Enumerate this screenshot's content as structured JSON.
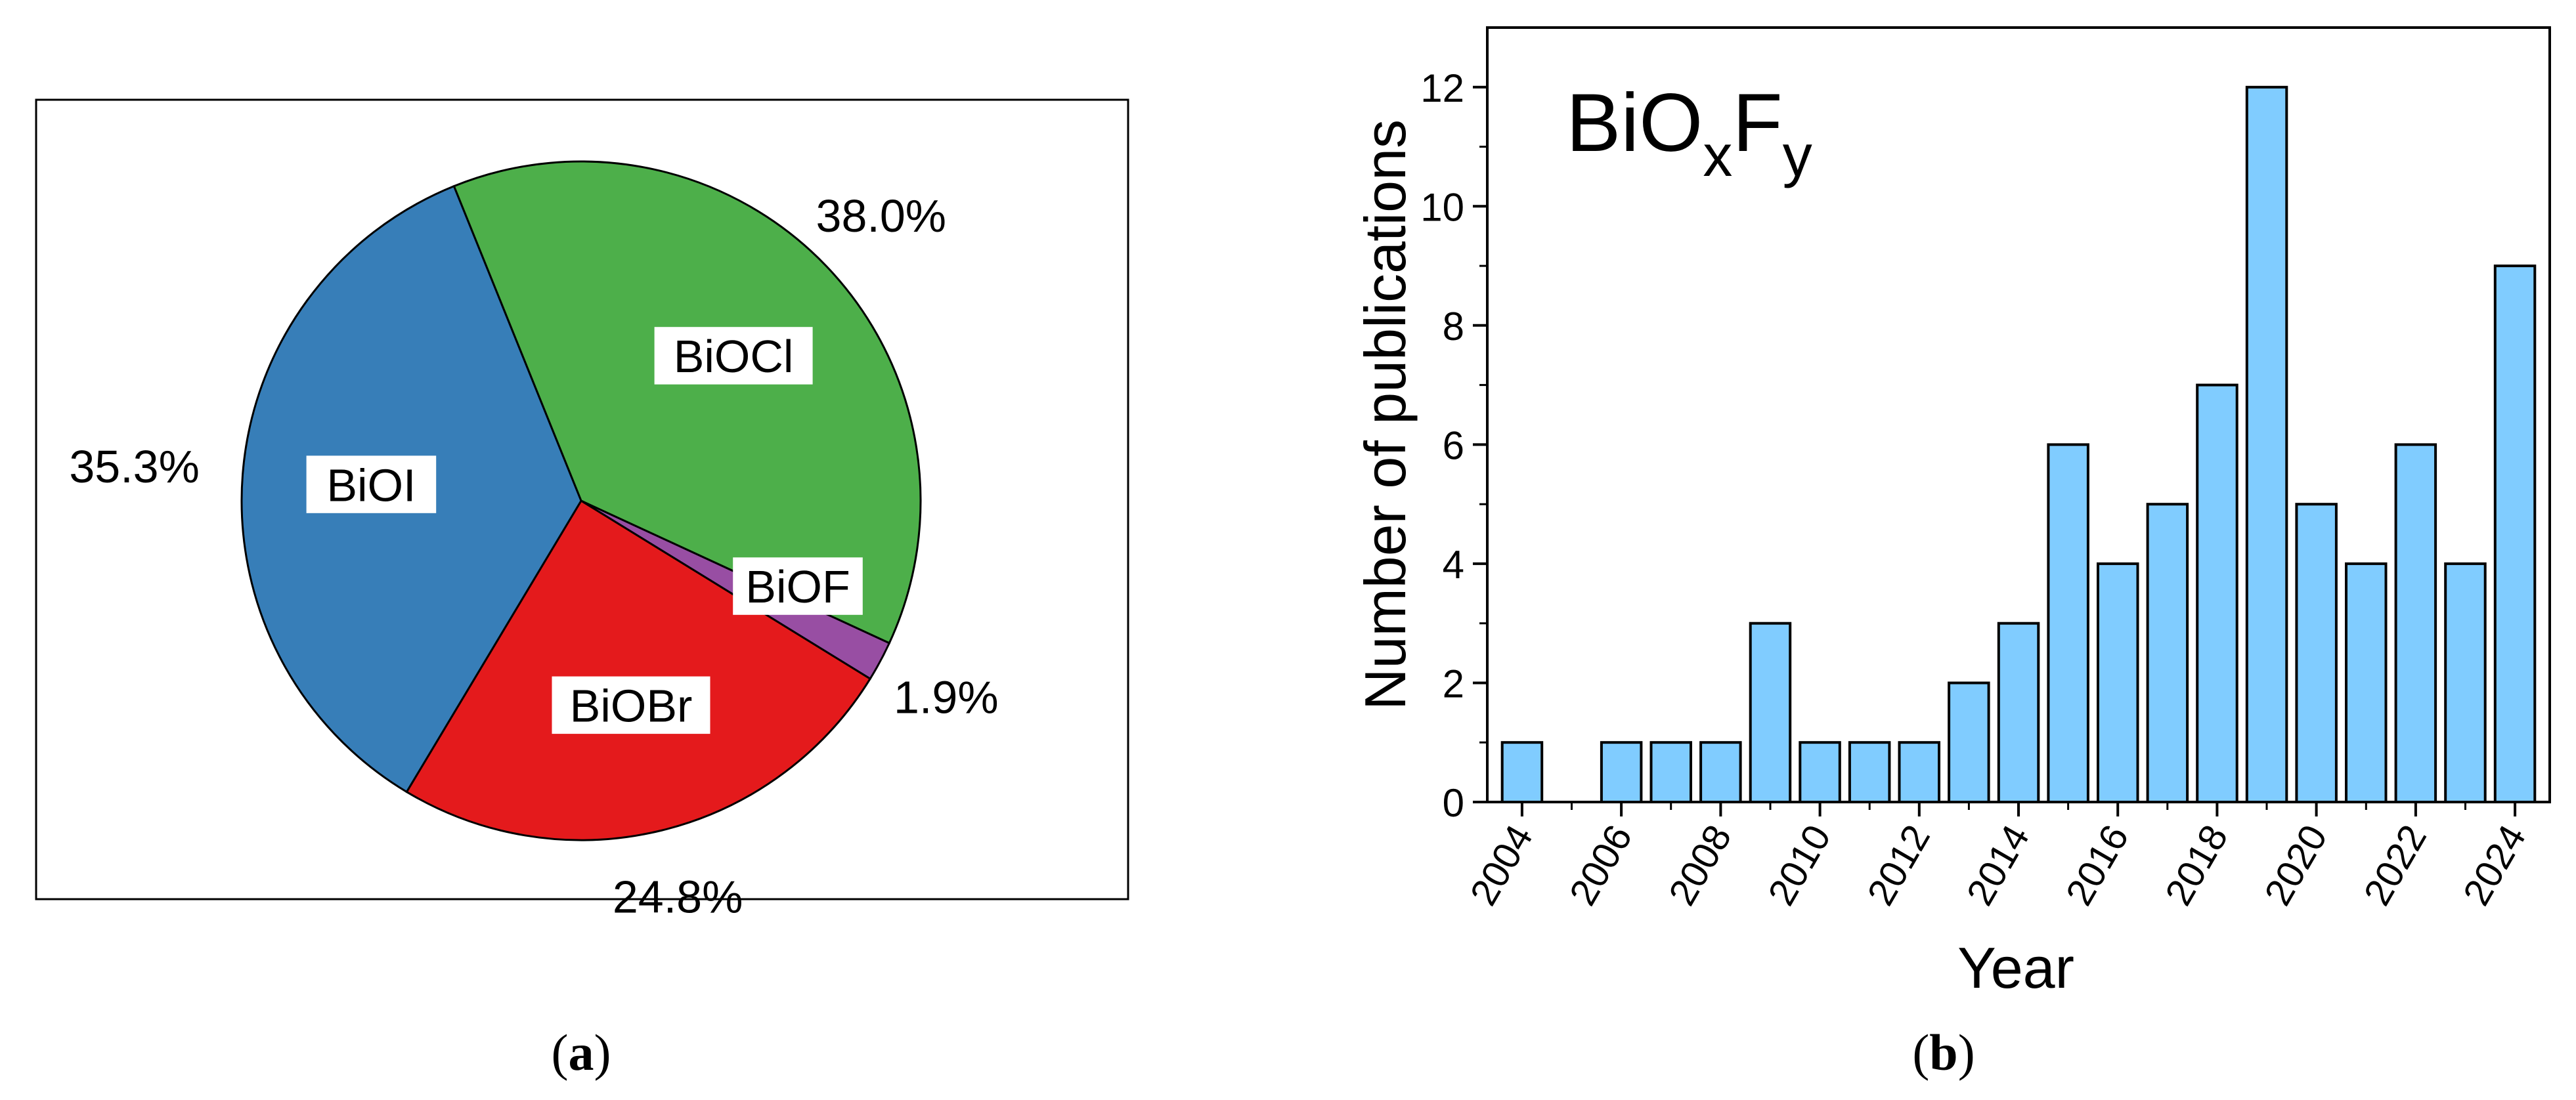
{
  "chart_data": [
    {
      "id": "a",
      "type": "pie",
      "caption": "a",
      "slices": [
        {
          "label": "BiOCl",
          "value": 38.0,
          "value_label": "38.0%",
          "color": "#4daf4a"
        },
        {
          "label": "BiOF",
          "value": 1.9,
          "value_label": "1.9%",
          "color": "#984ea3"
        },
        {
          "label": "BiOBr",
          "value": 24.8,
          "value_label": "24.8%",
          "color": "#e41a1c"
        },
        {
          "label": "BiOI",
          "value": 35.3,
          "value_label": "35.3%",
          "color": "#377eb8"
        }
      ]
    },
    {
      "id": "b",
      "type": "bar",
      "caption": "b",
      "title": {
        "base": "BiO",
        "sub1": "x",
        "mid": "F",
        "sub2": "y"
      },
      "xlabel": "Year",
      "ylabel": "Number of publications",
      "ylim": [
        0,
        13
      ],
      "xlim": [
        2003.3,
        2024.7
      ],
      "yticks": [
        "0",
        "2",
        "4",
        "6",
        "8",
        "10",
        "12"
      ],
      "xticks": [
        "2004",
        "2006",
        "2008",
        "2010",
        "2012",
        "2014",
        "2016",
        "2018",
        "2020",
        "2022",
        "2024"
      ],
      "bar_color": "#80ccff",
      "categories": [
        2004,
        2005,
        2006,
        2007,
        2008,
        2009,
        2010,
        2011,
        2012,
        2013,
        2014,
        2015,
        2016,
        2017,
        2018,
        2019,
        2020,
        2021,
        2022,
        2023,
        2024
      ],
      "values": [
        1,
        0,
        1,
        1,
        1,
        3,
        1,
        1,
        1,
        2,
        3,
        6,
        4,
        5,
        7,
        12,
        5,
        4,
        6,
        4,
        9
      ]
    }
  ]
}
